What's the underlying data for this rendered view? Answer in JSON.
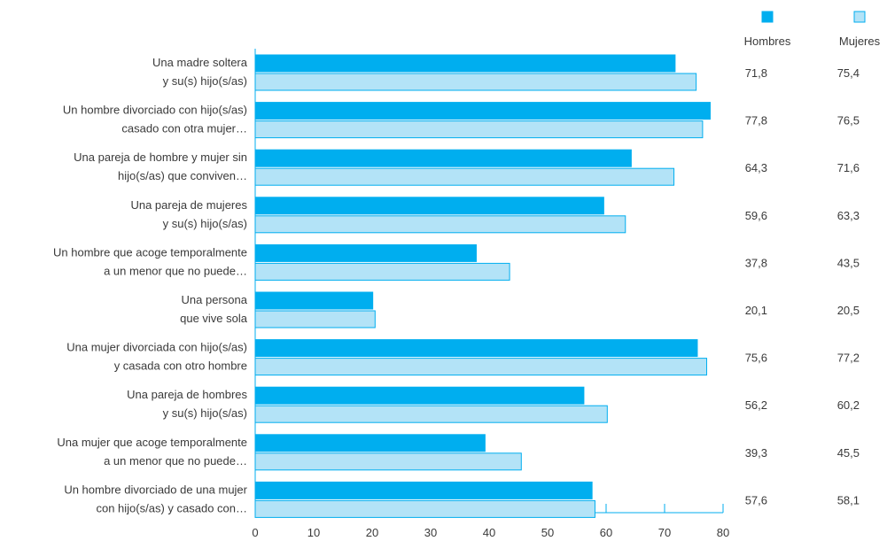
{
  "chart_data": {
    "type": "bar",
    "orientation": "horizontal",
    "categories": [
      [
        "Una madre soltera",
        "y su(s) hijo(s/as)"
      ],
      [
        "Un hombre divorciado con hijo(s/as)",
        "casado con otra mujer…"
      ],
      [
        "Una pareja de hombre y mujer sin",
        "hijo(s/as) que conviven…"
      ],
      [
        "Una pareja de mujeres",
        "y su(s) hijo(s/as)"
      ],
      [
        "Un hombre que acoge temporalmente",
        "a un menor que no puede…"
      ],
      [
        "Una persona",
        "que vive sola"
      ],
      [
        "Una mujer divorciada con hijo(s/as)",
        "y casada con otro hombre"
      ],
      [
        "Una pareja de hombres",
        "y su(s) hijo(s/as)"
      ],
      [
        "Una mujer que acoge temporalmente",
        "a un menor que no puede…"
      ],
      [
        "Un hombre divorciado de una mujer",
        "con hijo(s/as) y casado con…"
      ]
    ],
    "series": [
      {
        "name": "Hombres",
        "color": "#00aeef",
        "values": [
          71.8,
          77.8,
          64.3,
          59.6,
          37.8,
          20.1,
          75.6,
          56.2,
          39.3,
          57.6
        ],
        "value_labels": [
          "71,8",
          "77,8",
          "64,3",
          "59,6",
          "37,8",
          "20,1",
          "75,6",
          "56,2",
          "39,3",
          "57,6"
        ]
      },
      {
        "name": "Mujeres",
        "color": "#b3e3f7",
        "values": [
          75.4,
          76.5,
          71.6,
          63.3,
          43.5,
          20.5,
          77.2,
          60.2,
          45.5,
          58.1
        ],
        "value_labels": [
          "75,4",
          "76,5",
          "71,6",
          "63,3",
          "43,5",
          "20,5",
          "77,2",
          "60,2",
          "45,5",
          "58,1"
        ]
      }
    ],
    "xlim": [
      0,
      80
    ],
    "xticks": [
      0,
      10,
      20,
      30,
      40,
      50,
      60,
      70,
      80
    ],
    "xtick_labels": [
      "0",
      "10",
      "20",
      "30",
      "40",
      "50",
      "60",
      "70",
      "80"
    ],
    "legend_position": "top-right",
    "grid": false
  }
}
